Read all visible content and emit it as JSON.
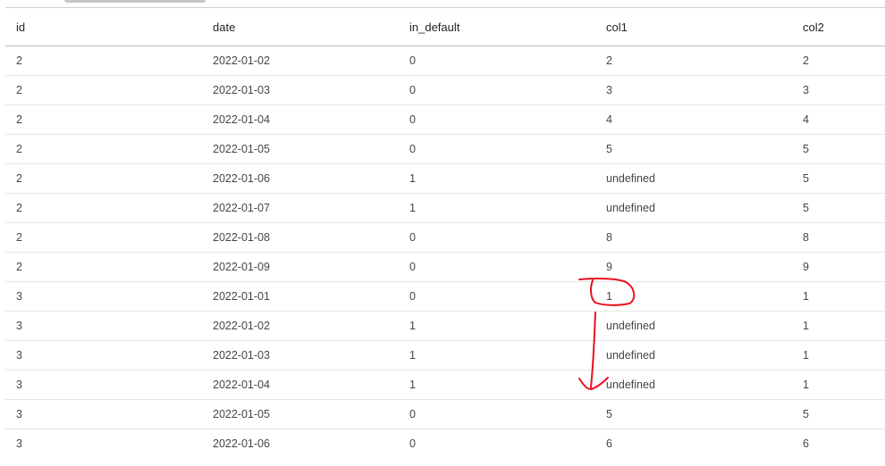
{
  "table": {
    "columns": [
      "id",
      "date",
      "in_default",
      "col1",
      "col2"
    ],
    "rows": [
      [
        "2",
        "2022-01-02",
        "0",
        "2",
        "2"
      ],
      [
        "2",
        "2022-01-03",
        "0",
        "3",
        "3"
      ],
      [
        "2",
        "2022-01-04",
        "0",
        "4",
        "4"
      ],
      [
        "2",
        "2022-01-05",
        "0",
        "5",
        "5"
      ],
      [
        "2",
        "2022-01-06",
        "1",
        "undefined",
        "5"
      ],
      [
        "2",
        "2022-01-07",
        "1",
        "undefined",
        "5"
      ],
      [
        "2",
        "2022-01-08",
        "0",
        "8",
        "8"
      ],
      [
        "2",
        "2022-01-09",
        "0",
        "9",
        "9"
      ],
      [
        "3",
        "2022-01-01",
        "0",
        "1",
        "1"
      ],
      [
        "3",
        "2022-01-02",
        "1",
        "undefined",
        "1"
      ],
      [
        "3",
        "2022-01-03",
        "1",
        "undefined",
        "1"
      ],
      [
        "3",
        "2022-01-04",
        "1",
        "undefined",
        "1"
      ],
      [
        "3",
        "2022-01-05",
        "0",
        "5",
        "5"
      ],
      [
        "3",
        "2022-01-06",
        "0",
        "6",
        "6"
      ]
    ]
  },
  "annotation": {
    "color": "#e8101e"
  }
}
